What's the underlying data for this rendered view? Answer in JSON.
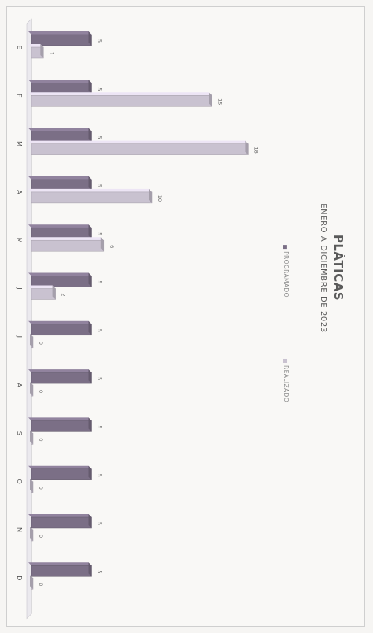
{
  "chart_data": {
    "type": "bar",
    "orientation": "horizontal",
    "title": "PLÁTICAS",
    "subtitle": "ENERO A DICIEMBRE DE 2023",
    "categories": [
      "E",
      "F",
      "M",
      "A",
      "M",
      "J",
      "J",
      "A",
      "S",
      "O",
      "N",
      "D"
    ],
    "series": [
      {
        "name": "PROGRAMADO",
        "values": [
          5,
          5,
          5,
          5,
          5,
          5,
          5,
          5,
          5,
          5,
          5,
          5
        ],
        "color": "#7b6f86"
      },
      {
        "name": "REALIZADO",
        "values": [
          1,
          15,
          18,
          10,
          6,
          2,
          0,
          0,
          0,
          0,
          0,
          0
        ],
        "color": "#c9c2d0"
      }
    ],
    "xlim": [
      0,
      20
    ],
    "grid": false,
    "legend_position": "right"
  }
}
